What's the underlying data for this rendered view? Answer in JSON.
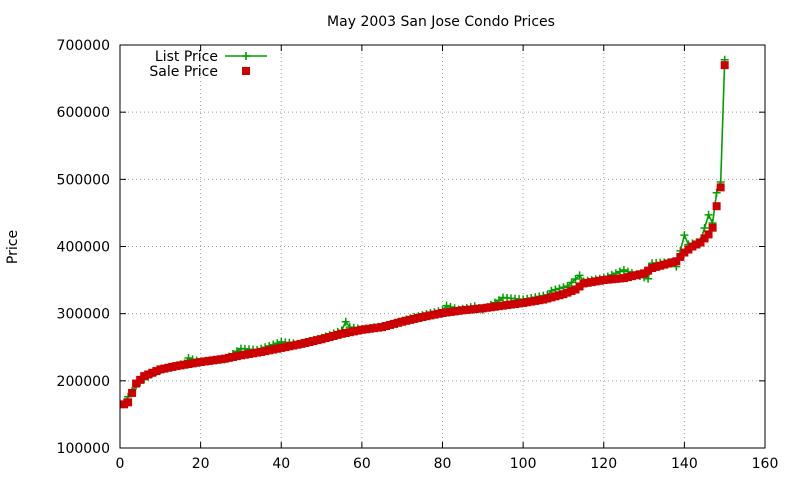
{
  "chart_data": {
    "type": "scatter",
    "title": "May 2003 San Jose Condo Prices",
    "xlabel": "",
    "ylabel": "Price",
    "xlim": [
      0,
      160
    ],
    "ylim": [
      100000,
      700000
    ],
    "xticks": [
      0,
      20,
      40,
      60,
      80,
      100,
      120,
      140,
      160
    ],
    "yticks": [
      100000,
      200000,
      300000,
      400000,
      500000,
      600000,
      700000
    ],
    "xtick_labels": [
      "0",
      "20",
      "40",
      "60",
      "80",
      "100",
      "120",
      "140",
      "160"
    ],
    "ytick_labels": [
      "100000",
      "200000",
      "300000",
      "400000",
      "500000",
      "600000",
      "700000"
    ],
    "grid": true,
    "legend": "top-left",
    "series": [
      {
        "name": "List Price",
        "style": "line-points",
        "color": "#00a000",
        "marker": "plus",
        "key": [
          [
            1,
            168000
          ],
          [
            4,
            193000
          ],
          [
            8,
            211000
          ],
          [
            12,
            220000
          ],
          [
            16,
            226000
          ],
          [
            17,
            234000
          ],
          [
            20,
            228000
          ],
          [
            26,
            232000
          ],
          [
            29,
            244000
          ],
          [
            30,
            248000
          ],
          [
            34,
            246000
          ],
          [
            40,
            258000
          ],
          [
            44,
            255000
          ],
          [
            50,
            264000
          ],
          [
            55,
            275000
          ],
          [
            56,
            288000
          ],
          [
            57,
            280000
          ],
          [
            60,
            277000
          ],
          [
            66,
            282000
          ],
          [
            73,
            295000
          ],
          [
            80,
            305000
          ],
          [
            81,
            312000
          ],
          [
            84,
            306000
          ],
          [
            88,
            311000
          ],
          [
            90,
            306000
          ],
          [
            94,
            320000
          ],
          [
            95,
            324000
          ],
          [
            100,
            321000
          ],
          [
            106,
            328000
          ],
          [
            107,
            334000
          ],
          [
            111,
            341000
          ],
          [
            114,
            357000
          ],
          [
            115,
            348000
          ],
          [
            120,
            353000
          ],
          [
            125,
            365000
          ],
          [
            128,
            358000
          ],
          [
            131,
            352000
          ],
          [
            132,
            375000
          ],
          [
            137,
            377000
          ],
          [
            138,
            370000
          ],
          [
            140,
            417000
          ],
          [
            141,
            403000
          ],
          [
            144,
            408000
          ],
          [
            146,
            447000
          ],
          [
            147,
            435000
          ],
          [
            148,
            480000
          ],
          [
            149,
            496000
          ],
          [
            150,
            678000
          ]
        ]
      },
      {
        "name": "Sale Price",
        "style": "points",
        "color": "#cc0000",
        "marker": "square",
        "key": [
          [
            1,
            165000
          ],
          [
            2,
            168000
          ],
          [
            3,
            182000
          ],
          [
            4,
            196000
          ],
          [
            6,
            207000
          ],
          [
            8,
            212000
          ],
          [
            10,
            217000
          ],
          [
            14,
            222000
          ],
          [
            20,
            228000
          ],
          [
            26,
            233000
          ],
          [
            30,
            238000
          ],
          [
            35,
            243000
          ],
          [
            40,
            249000
          ],
          [
            45,
            255000
          ],
          [
            50,
            262000
          ],
          [
            55,
            270000
          ],
          [
            60,
            276000
          ],
          [
            65,
            280000
          ],
          [
            70,
            288000
          ],
          [
            75,
            295000
          ],
          [
            80,
            301000
          ],
          [
            85,
            305000
          ],
          [
            90,
            308000
          ],
          [
            95,
            312000
          ],
          [
            100,
            316000
          ],
          [
            105,
            321000
          ],
          [
            110,
            329000
          ],
          [
            113,
            336000
          ],
          [
            115,
            345000
          ],
          [
            120,
            350000
          ],
          [
            125,
            353000
          ],
          [
            130,
            360000
          ],
          [
            132,
            368000
          ],
          [
            135,
            373000
          ],
          [
            138,
            378000
          ],
          [
            140,
            391000
          ],
          [
            142,
            400000
          ],
          [
            144,
            406000
          ],
          [
            146,
            418000
          ],
          [
            147,
            428000
          ],
          [
            148,
            460000
          ],
          [
            149,
            488000
          ],
          [
            150,
            670000
          ]
        ]
      }
    ]
  }
}
